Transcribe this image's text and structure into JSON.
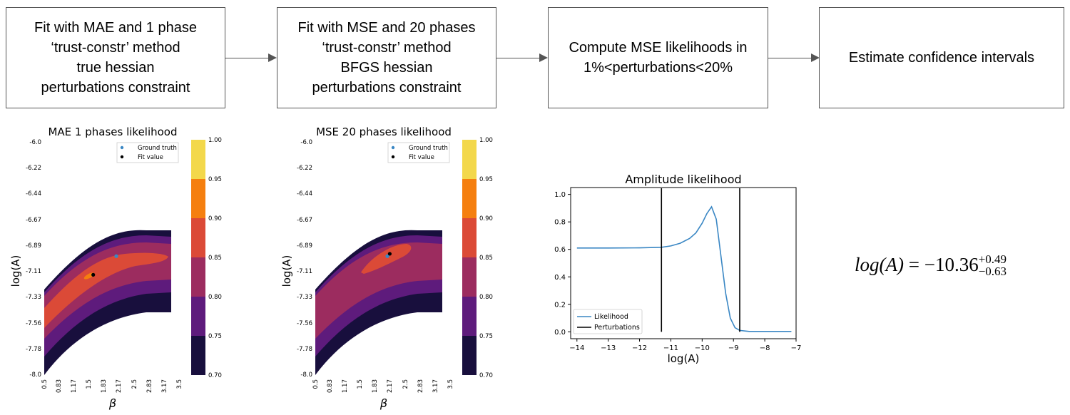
{
  "steps": [
    {
      "lines": [
        "Fit with MAE and 1 phase",
        "‘trust-constr’ method",
        "true hessian",
        "perturbations constraint"
      ]
    },
    {
      "lines": [
        "Fit with MSE and 20 phases",
        "‘trust-constr’ method",
        "BFGS hessian",
        "perturbations constraint"
      ]
    },
    {
      "lines": [
        "Compute MSE likelihoods in",
        "1%<perturbations<20%"
      ]
    },
    {
      "lines": [
        "Estimate confidence intervals"
      ]
    }
  ],
  "heatmaps": [
    {
      "title": "MAE 1 phases likelihood",
      "xlabel": "β",
      "ylabel": "log(A)",
      "xticks": [
        "0.5",
        "0.83",
        "1.17",
        "1.5",
        "1.83",
        "2.17",
        "2.5",
        "2.83",
        "3.17",
        "3.5"
      ],
      "yticks": [
        "-6.0",
        "-6.22",
        "-6.44",
        "-6.67",
        "-6.89",
        "-7.11",
        "-7.33",
        "-7.56",
        "-7.78",
        "-8.0"
      ],
      "legend": [
        "Ground truth",
        "Fit value"
      ],
      "ground_truth": {
        "beta": 2.0,
        "logA": -6.98
      },
      "fit_value": {
        "beta": 1.52,
        "logA": -7.14
      }
    },
    {
      "title": "MSE 20 phases likelihood",
      "xlabel": "β",
      "ylabel": "log(A)",
      "xticks": [
        "0.5",
        "0.83",
        "1.17",
        "1.5",
        "1.83",
        "2.17",
        "2.5",
        "2.83",
        "3.17",
        "3.5"
      ],
      "yticks": [
        "-6.0",
        "-6.22",
        "-6.44",
        "-6.67",
        "-6.89",
        "-7.11",
        "-7.33",
        "-7.56",
        "-7.78",
        "-8.0"
      ],
      "legend": [
        "Ground truth",
        "Fit value"
      ],
      "ground_truth": {
        "beta": 2.0,
        "logA": -6.98
      },
      "fit_value": {
        "beta": 2.05,
        "logA": -6.96
      }
    }
  ],
  "colorbar": {
    "ticks": [
      "1.00",
      "0.95",
      "0.90",
      "0.85",
      "0.80",
      "0.75",
      "0.70"
    ],
    "colors": [
      "#f3d84b",
      "#f57f0f",
      "#db4a37",
      "#9c2c5f",
      "#5e1b7c",
      "#180f3d"
    ]
  },
  "chart_data": {
    "type": "line",
    "title": "Amplitude likelihood",
    "xlabel": "log(A)",
    "ylabel": "",
    "xlim": [
      -14.2,
      -7.0
    ],
    "ylim": [
      -0.05,
      1.05
    ],
    "xticks": [
      "−14",
      "−13",
      "−12",
      "−11",
      "−10",
      "−9",
      "−8",
      "−7"
    ],
    "yticks": [
      "0.0",
      "0.2",
      "0.4",
      "0.6",
      "0.8",
      "1.0"
    ],
    "series": [
      {
        "name": "Likelihood",
        "color": "#3a87c4",
        "x": [
          -14,
          -13,
          -12,
          -11.3,
          -11,
          -10.7,
          -10.4,
          -10.2,
          -10.0,
          -9.85,
          -9.7,
          -9.55,
          -9.4,
          -9.25,
          -9.1,
          -8.95,
          -8.8,
          -8.5,
          -8,
          -7.15
        ],
        "y": [
          0.61,
          0.61,
          0.611,
          0.615,
          0.625,
          0.645,
          0.68,
          0.72,
          0.79,
          0.86,
          0.91,
          0.82,
          0.55,
          0.28,
          0.1,
          0.03,
          0.01,
          0.003,
          0.003,
          0.003
        ]
      },
      {
        "name": "Perturbations",
        "color": "#000000",
        "vlines": [
          -11.3,
          -8.8
        ]
      }
    ]
  },
  "formula": {
    "lhs": "log(A)",
    "equals": "=",
    "value": "−10.36",
    "sup": "+0.49",
    "sub": "−0.63"
  }
}
